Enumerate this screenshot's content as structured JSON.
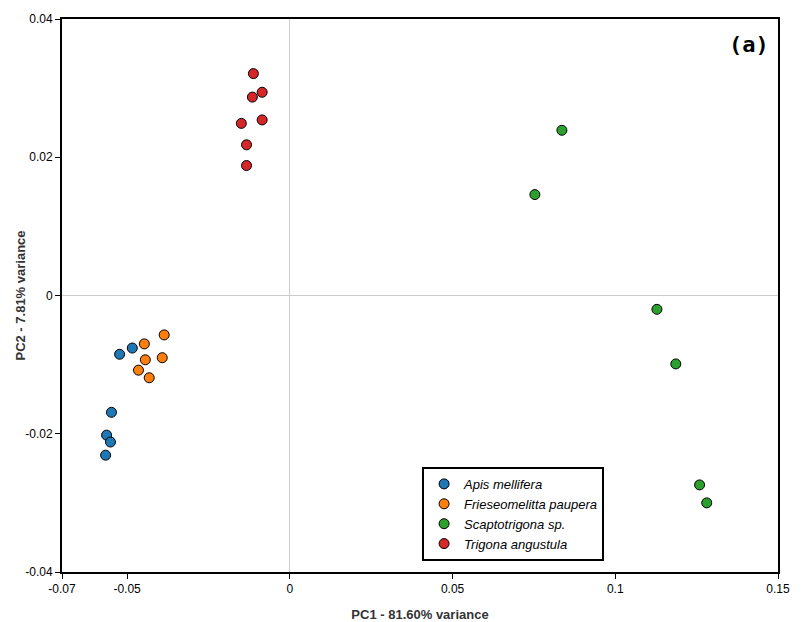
{
  "chart_data": {
    "type": "scatter",
    "xlabel": "PC1 - 81.60% variance",
    "ylabel": "PC2 - 7.81% variance",
    "annotations": [
      "(a)"
    ],
    "xlim": [
      -0.07,
      0.15
    ],
    "xticks": [
      -0.07,
      -0.05,
      0,
      0.05,
      0.1,
      0.15
    ],
    "ylim": [
      -0.04,
      0.04
    ],
    "yticks": [
      -0.04,
      -0.02,
      0,
      0.02,
      0.04
    ],
    "grid": false,
    "legend": "bottom",
    "marker": "circle",
    "series": [
      {
        "name": "Apis mellifera",
        "color": "#1f77b4",
        "x": [
          -0.0523,
          -0.0484,
          -0.0548,
          -0.0563,
          -0.0551,
          -0.0566
        ],
        "values": [
          -0.0085,
          -0.0076,
          -0.0169,
          -0.0202,
          -0.0212,
          -0.0231
        ]
      },
      {
        "name": "Frieseomelitta paupera",
        "color": "#ff7f0e",
        "x": [
          -0.0386,
          -0.0447,
          -0.0444,
          -0.0392,
          -0.0465,
          -0.0432
        ],
        "values": [
          -0.0057,
          -0.007,
          -0.0093,
          -0.009,
          -0.0108,
          -0.0119
        ]
      },
      {
        "name": "Scaptotrigona sp.",
        "color": "#2ca02c",
        "x": [
          0.0836,
          0.0753,
          0.1128,
          0.1186,
          0.1259,
          0.1281
        ],
        "values": [
          0.0239,
          0.0146,
          -0.002,
          -0.0099,
          -0.0274,
          -0.03
        ]
      },
      {
        "name": "Trigona angustula",
        "color": "#d62728",
        "x": [
          -0.0112,
          -0.0085,
          -0.0115,
          -0.0149,
          -0.0085,
          -0.0133,
          -0.0133
        ],
        "values": [
          0.0321,
          0.0294,
          0.0287,
          0.0249,
          0.0254,
          0.0218,
          0.0188
        ]
      }
    ]
  }
}
